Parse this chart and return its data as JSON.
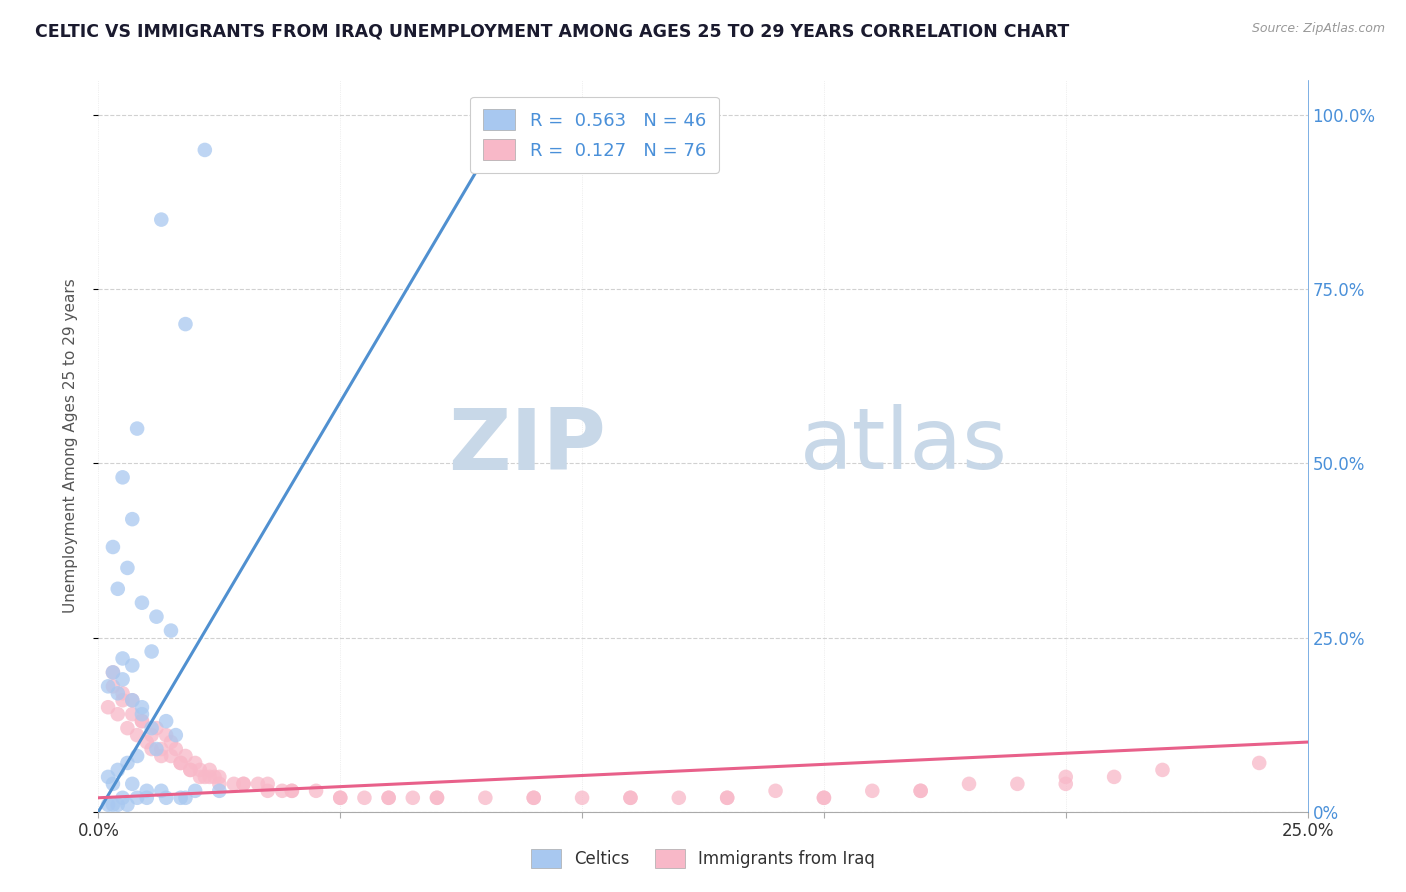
{
  "title": "CELTIC VS IMMIGRANTS FROM IRAQ UNEMPLOYMENT AMONG AGES 25 TO 29 YEARS CORRELATION CHART",
  "source_text": "Source: ZipAtlas.com",
  "ylabel": "Unemployment Among Ages 25 to 29 years",
  "xlim": [
    0.0,
    0.25
  ],
  "ylim": [
    0.0,
    1.05
  ],
  "celtics_color": "#a8c8f0",
  "iraq_color": "#f8b8c8",
  "celtics_line_color": "#5090d0",
  "iraq_line_color": "#e8608a",
  "celtics_R": 0.563,
  "celtics_N": 46,
  "iraq_R": 0.127,
  "iraq_N": 76,
  "background_color": "#ffffff",
  "grid_color": "#cccccc",
  "watermark_zip": "ZIP",
  "watermark_atlas": "atlas",
  "watermark_color": "#c8d8e8",
  "right_axis_color": "#4a90d9",
  "celtics_x": [
    0.022,
    0.013,
    0.018,
    0.008,
    0.005,
    0.007,
    0.003,
    0.006,
    0.004,
    0.009,
    0.012,
    0.015,
    0.011,
    0.007,
    0.005,
    0.004,
    0.009,
    0.014,
    0.016,
    0.012,
    0.008,
    0.006,
    0.004,
    0.002,
    0.003,
    0.007,
    0.01,
    0.013,
    0.017,
    0.008,
    0.005,
    0.003,
    0.002,
    0.004,
    0.006,
    0.01,
    0.014,
    0.018,
    0.02,
    0.025,
    0.002,
    0.003,
    0.005,
    0.007,
    0.009,
    0.011
  ],
  "celtics_y": [
    0.95,
    0.85,
    0.7,
    0.55,
    0.48,
    0.42,
    0.38,
    0.35,
    0.32,
    0.3,
    0.28,
    0.26,
    0.23,
    0.21,
    0.19,
    0.17,
    0.15,
    0.13,
    0.11,
    0.09,
    0.08,
    0.07,
    0.06,
    0.05,
    0.04,
    0.04,
    0.03,
    0.03,
    0.02,
    0.02,
    0.02,
    0.01,
    0.01,
    0.01,
    0.01,
    0.02,
    0.02,
    0.02,
    0.03,
    0.03,
    0.18,
    0.2,
    0.22,
    0.16,
    0.14,
    0.12
  ],
  "iraq_x": [
    0.002,
    0.003,
    0.004,
    0.005,
    0.006,
    0.007,
    0.008,
    0.009,
    0.01,
    0.011,
    0.012,
    0.013,
    0.014,
    0.015,
    0.016,
    0.017,
    0.018,
    0.019,
    0.02,
    0.021,
    0.022,
    0.023,
    0.024,
    0.025,
    0.028,
    0.03,
    0.033,
    0.035,
    0.038,
    0.04,
    0.045,
    0.05,
    0.055,
    0.06,
    0.065,
    0.07,
    0.08,
    0.09,
    0.1,
    0.11,
    0.12,
    0.13,
    0.14,
    0.15,
    0.16,
    0.17,
    0.18,
    0.19,
    0.2,
    0.21,
    0.22,
    0.24,
    0.003,
    0.005,
    0.007,
    0.009,
    0.011,
    0.013,
    0.015,
    0.017,
    0.019,
    0.021,
    0.023,
    0.025,
    0.03,
    0.035,
    0.04,
    0.05,
    0.06,
    0.07,
    0.09,
    0.11,
    0.13,
    0.15,
    0.17,
    0.2
  ],
  "iraq_y": [
    0.15,
    0.18,
    0.14,
    0.17,
    0.12,
    0.16,
    0.11,
    0.13,
    0.1,
    0.09,
    0.12,
    0.08,
    0.11,
    0.1,
    0.09,
    0.07,
    0.08,
    0.06,
    0.07,
    0.06,
    0.05,
    0.06,
    0.05,
    0.05,
    0.04,
    0.04,
    0.04,
    0.03,
    0.03,
    0.03,
    0.03,
    0.02,
    0.02,
    0.02,
    0.02,
    0.02,
    0.02,
    0.02,
    0.02,
    0.02,
    0.02,
    0.02,
    0.03,
    0.02,
    0.03,
    0.03,
    0.04,
    0.04,
    0.05,
    0.05,
    0.06,
    0.07,
    0.2,
    0.16,
    0.14,
    0.13,
    0.11,
    0.09,
    0.08,
    0.07,
    0.06,
    0.05,
    0.05,
    0.04,
    0.04,
    0.04,
    0.03,
    0.02,
    0.02,
    0.02,
    0.02,
    0.02,
    0.02,
    0.02,
    0.03,
    0.04
  ],
  "celtics_trend_x": [
    0.0,
    0.085
  ],
  "celtics_trend_y": [
    0.0,
    1.0
  ],
  "iraq_trend_x": [
    0.0,
    0.25
  ],
  "iraq_trend_y": [
    0.02,
    0.1
  ]
}
